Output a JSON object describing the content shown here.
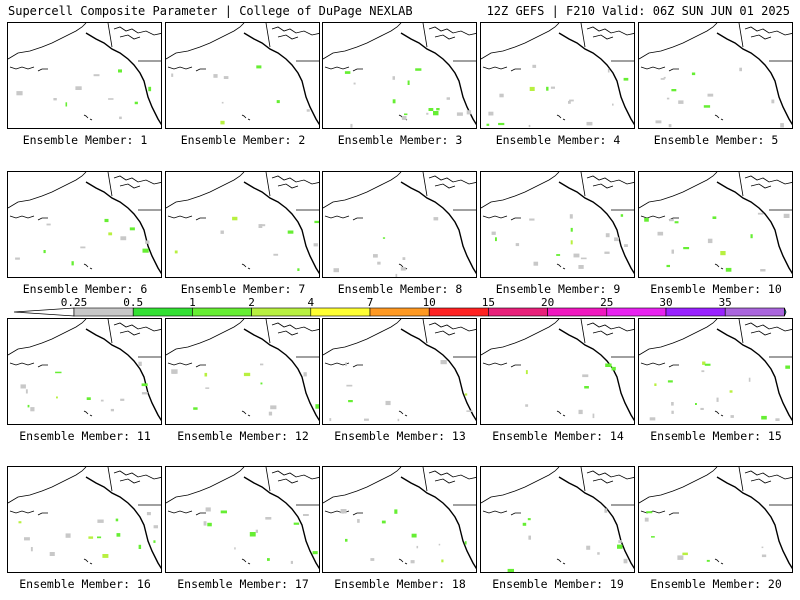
{
  "header": {
    "title_left": "Supercell Composite Parameter | College of DuPage NEXLAB",
    "title_right": "12Z GEFS | F210 Valid: 06Z SUN JUN 01 2025"
  },
  "colorbar": {
    "labels": [
      "0.25",
      "0.5",
      "1",
      "2",
      "4",
      "7",
      "10",
      "15",
      "20",
      "25",
      "30",
      "35"
    ],
    "colors": [
      "#c8c8c8",
      "#33e033",
      "#66ee33",
      "#b8f040",
      "#ffff33",
      "#ff9922",
      "#ff2222",
      "#e8207a",
      "#f018c0",
      "#e822f0",
      "#9922ff",
      "#aa66dd",
      "#33e0f0"
    ]
  },
  "members": [
    {
      "label": "Ensemble Member: 1"
    },
    {
      "label": "Ensemble Member: 2"
    },
    {
      "label": "Ensemble Member: 3"
    },
    {
      "label": "Ensemble Member: 4"
    },
    {
      "label": "Ensemble Member: 5"
    },
    {
      "label": "Ensemble Member: 6"
    },
    {
      "label": "Ensemble Member: 7"
    },
    {
      "label": "Ensemble Member: 8"
    },
    {
      "label": "Ensemble Member: 9"
    },
    {
      "label": "Ensemble Member: 10"
    },
    {
      "label": "Ensemble Member: 11"
    },
    {
      "label": "Ensemble Member: 12"
    },
    {
      "label": "Ensemble Member: 13"
    },
    {
      "label": "Ensemble Member: 14"
    },
    {
      "label": "Ensemble Member: 15"
    },
    {
      "label": "Ensemble Member: 16"
    },
    {
      "label": "Ensemble Member: 17"
    },
    {
      "label": "Ensemble Member: 18"
    },
    {
      "label": "Ensemble Member: 19"
    },
    {
      "label": "Ensemble Member: 20"
    }
  ]
}
